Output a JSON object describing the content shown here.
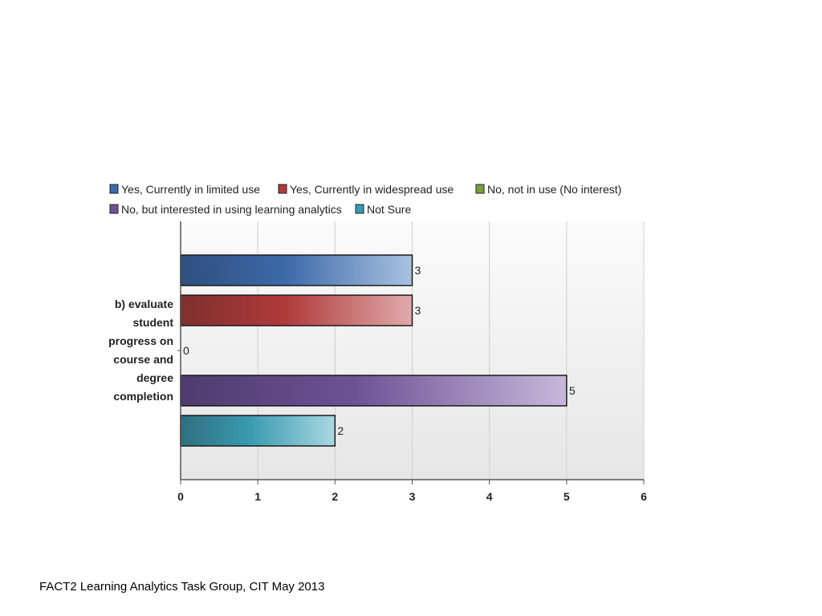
{
  "footer": "FACT2 Learning Analytics Task Group, CIT May 2013",
  "chart_data": {
    "type": "bar",
    "orientation": "horizontal",
    "categories": [
      "b) evaluate student progress on course and degree completion"
    ],
    "category_label_lines": [
      "b) evaluate",
      "student",
      "progress on",
      "course and",
      "degree",
      "completion"
    ],
    "series": [
      {
        "name": "Yes, Currently in limited use",
        "values": [
          3
        ],
        "color": "#3b6aa8",
        "light": "#a9c2e0",
        "dark": "#2f4f7f"
      },
      {
        "name": "Yes, Currently in widespread use",
        "values": [
          3
        ],
        "color": "#b03a3a",
        "light": "#e0aaaa",
        "dark": "#7f2f2f"
      },
      {
        "name": "No, not in use (No interest)",
        "values": [
          0
        ],
        "color": "#7aa03a",
        "light": "#c8dca6",
        "dark": "#55702a"
      },
      {
        "name": "No, but interested in using learning analytics",
        "values": [
          5
        ],
        "color": "#6d5296",
        "light": "#c8b8da",
        "dark": "#4e3b6e"
      },
      {
        "name": "Not Sure",
        "values": [
          2
        ],
        "color": "#3a9ab0",
        "light": "#aad8e2",
        "dark": "#2f6f7f"
      }
    ],
    "xlim": [
      0,
      6
    ],
    "ticks": [
      "0",
      "1",
      "2",
      "3",
      "4",
      "5",
      "6"
    ],
    "grid": true,
    "legend_position": "top",
    "show_value_labels": true
  }
}
